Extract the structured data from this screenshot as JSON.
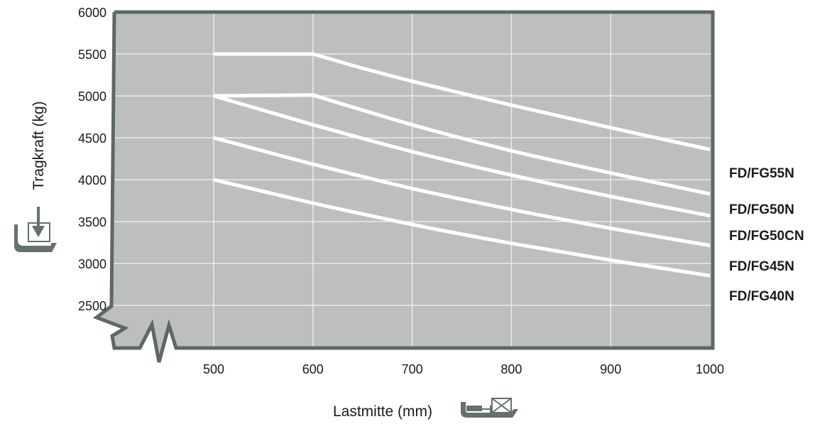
{
  "chart_data": {
    "type": "line",
    "xlabel": "Lastmitte (mm)",
    "ylabel": "Tragkraft (kg)",
    "xlim": [
      500,
      1000
    ],
    "ylim": [
      2500,
      6000
    ],
    "x_ticks": [
      "500",
      "600",
      "700",
      "800",
      "900",
      "1000"
    ],
    "y_ticks": [
      "2500",
      "3000",
      "3500",
      "4000",
      "4500",
      "5000",
      "5500",
      "6000"
    ],
    "grid": true,
    "legend": "right, labels at line ends",
    "series": [
      {
        "name": "FD/FG55N",
        "points": [
          [
            500,
            5500
          ],
          [
            600,
            5500
          ],
          [
            650,
            5330
          ],
          [
            700,
            5175
          ],
          [
            800,
            4890
          ],
          [
            900,
            4620
          ],
          [
            1000,
            4360
          ]
        ]
      },
      {
        "name": "FD/FG50N",
        "points": [
          [
            500,
            5000
          ],
          [
            600,
            5010
          ],
          [
            700,
            4655
          ],
          [
            800,
            4345
          ],
          [
            900,
            4080
          ],
          [
            1000,
            3830
          ]
        ]
      },
      {
        "name": "FD/FG50CN",
        "points": [
          [
            500,
            5000
          ],
          [
            600,
            4655
          ],
          [
            700,
            4335
          ],
          [
            800,
            4055
          ],
          [
            900,
            3800
          ],
          [
            1000,
            3570
          ]
        ]
      },
      {
        "name": "FD/FG45N",
        "points": [
          [
            500,
            4500
          ],
          [
            600,
            4185
          ],
          [
            700,
            3895
          ],
          [
            800,
            3645
          ],
          [
            900,
            3420
          ],
          [
            1000,
            3215
          ]
        ]
      },
      {
        "name": "FD/FG40N",
        "points": [
          [
            500,
            4000
          ],
          [
            600,
            3720
          ],
          [
            700,
            3465
          ],
          [
            800,
            3240
          ],
          [
            900,
            3040
          ],
          [
            1000,
            2855
          ]
        ]
      }
    ],
    "colors": {
      "plot_background": "#bdbfbf",
      "frame": "#5d6864",
      "grid": "#e9ebea",
      "line": "#ffffff",
      "text": "#1b1b1b",
      "icon": "#65706c"
    }
  },
  "icons": {
    "y_axis_icon": "fork-load-down-icon",
    "x_axis_icon": "load-center-pallet-icon",
    "axis_break": "axis-break-icon"
  }
}
